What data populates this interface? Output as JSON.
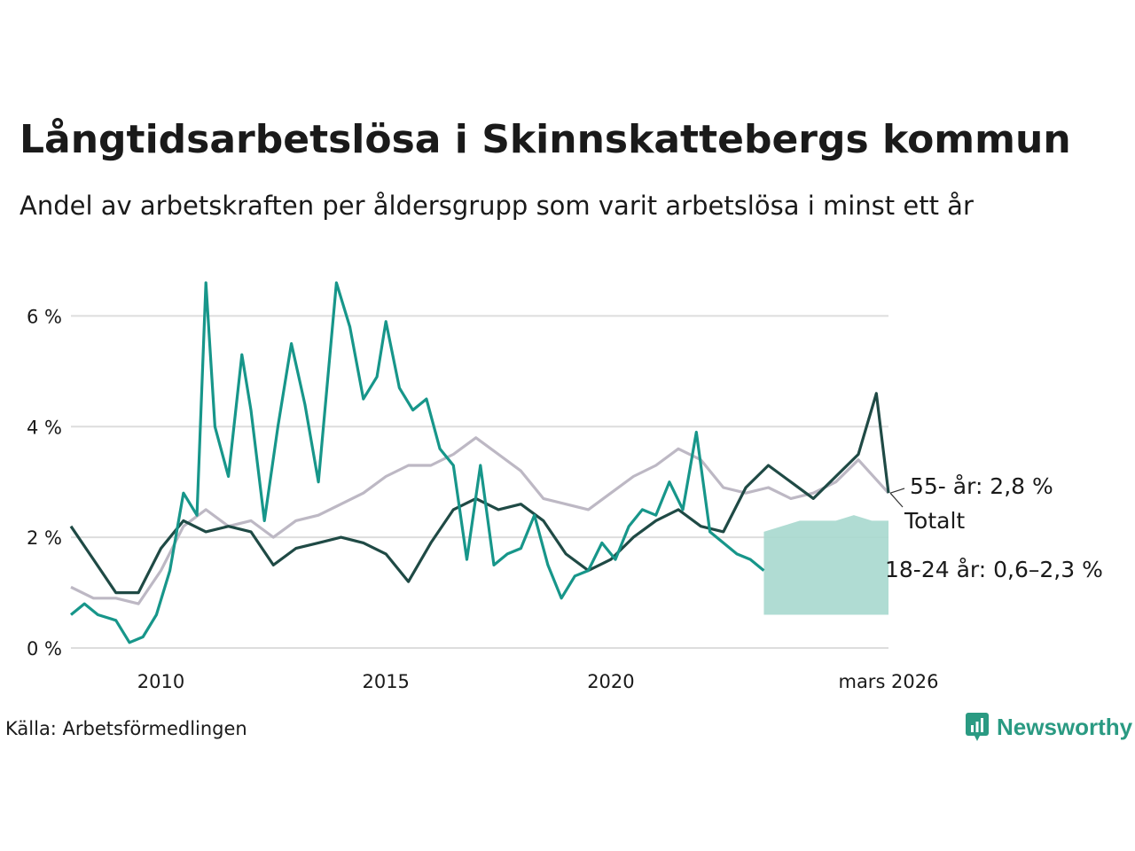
{
  "title": "Långtidsarbetslösa i Skinnskattebergs kommun",
  "subtitle": "Andel av arbetskraften per åldersgrupp som varit arbetslösa i minst ett år",
  "source": "Källa: Arbetsförmedlingen",
  "logo_text": "Newsworthy",
  "colors": {
    "total": "#1f4a45",
    "youth": "#17968a",
    "senior": "#bdb8c4",
    "band": "#a7d8ce",
    "grid": "#dddddd"
  },
  "chart_data": {
    "type": "line",
    "title": "Långtidsarbetslösa i Skinnskattebergs kommun",
    "xlabel": "",
    "ylabel": "",
    "ylim": [
      0,
      7
    ],
    "xlim": [
      2008.0,
      2026.17
    ],
    "y_ticks": [
      0,
      2,
      4,
      6
    ],
    "y_tick_labels": [
      "0 %",
      "2 %",
      "4 %",
      "6 %"
    ],
    "x_ticks": [
      2010,
      2015,
      2020,
      2026.17
    ],
    "x_tick_labels": [
      "2010",
      "2015",
      "2020",
      "mars 2026"
    ],
    "series": [
      {
        "name": "55- år",
        "label": "55- år: 2,8 %",
        "color": "#bdb8c4",
        "x": [
          2008.0,
          2008.5,
          2009.0,
          2009.5,
          2010.0,
          2010.5,
          2011.0,
          2011.5,
          2012.0,
          2012.5,
          2013.0,
          2013.5,
          2014.0,
          2014.5,
          2015.0,
          2015.5,
          2016.0,
          2016.5,
          2017.0,
          2017.5,
          2018.0,
          2018.5,
          2019.0,
          2019.5,
          2020.0,
          2020.5,
          2021.0,
          2021.5,
          2022.0,
          2022.5,
          2023.0,
          2023.5,
          2024.0,
          2024.5,
          2025.0,
          2025.5,
          2026.17
        ],
        "y": [
          1.1,
          0.9,
          0.9,
          0.8,
          1.4,
          2.2,
          2.5,
          2.2,
          2.3,
          2.0,
          2.3,
          2.4,
          2.6,
          2.8,
          3.1,
          3.3,
          3.3,
          3.5,
          3.8,
          3.5,
          3.2,
          2.7,
          2.6,
          2.5,
          2.8,
          3.1,
          3.3,
          3.6,
          3.4,
          2.9,
          2.8,
          2.9,
          2.7,
          2.8,
          3.0,
          3.4,
          2.8
        ]
      },
      {
        "name": "Totalt",
        "label": "Totalt",
        "color": "#1f4a45",
        "x": [
          2008.0,
          2008.5,
          2009.0,
          2009.5,
          2010.0,
          2010.5,
          2011.0,
          2011.5,
          2012.0,
          2012.5,
          2013.0,
          2013.5,
          2014.0,
          2014.5,
          2015.0,
          2015.5,
          2016.0,
          2016.5,
          2017.0,
          2017.5,
          2018.0,
          2018.5,
          2019.0,
          2019.5,
          2020.0,
          2020.5,
          2021.0,
          2021.5,
          2022.0,
          2022.5,
          2023.0,
          2023.5,
          2024.0,
          2024.5,
          2025.0,
          2025.5,
          2025.9,
          2026.17
        ],
        "y": [
          2.2,
          1.6,
          1.0,
          1.0,
          1.8,
          2.3,
          2.1,
          2.2,
          2.1,
          1.5,
          1.8,
          1.9,
          2.0,
          1.9,
          1.7,
          1.2,
          1.9,
          2.5,
          2.7,
          2.5,
          2.6,
          2.3,
          1.7,
          1.4,
          1.6,
          2.0,
          2.3,
          2.5,
          2.2,
          2.1,
          2.9,
          3.3,
          3.0,
          2.7,
          3.1,
          3.5,
          4.6,
          2.8
        ]
      },
      {
        "name": "18-24 år",
        "label": "18-24 år: 0,6–2,3 %",
        "color": "#17968a",
        "x": [
          2008.0,
          2008.3,
          2008.6,
          2009.0,
          2009.3,
          2009.6,
          2009.9,
          2010.2,
          2010.5,
          2010.8,
          2011.0,
          2011.2,
          2011.5,
          2011.8,
          2012.0,
          2012.3,
          2012.6,
          2012.9,
          2013.2,
          2013.5,
          2013.9,
          2014.2,
          2014.5,
          2014.8,
          2015.0,
          2015.3,
          2015.6,
          2015.9,
          2016.2,
          2016.5,
          2016.8,
          2017.1,
          2017.4,
          2017.7,
          2018.0,
          2018.3,
          2018.6,
          2018.9,
          2019.2,
          2019.5,
          2019.8,
          2020.1,
          2020.4,
          2020.7,
          2021.0,
          2021.3,
          2021.6,
          2021.9,
          2022.2,
          2022.5,
          2022.8,
          2023.1,
          2023.4
        ],
        "y": [
          0.6,
          0.8,
          0.6,
          0.5,
          0.1,
          0.2,
          0.6,
          1.4,
          2.8,
          2.4,
          6.6,
          4.0,
          3.1,
          5.3,
          4.3,
          2.3,
          4.0,
          5.5,
          4.4,
          3.0,
          6.6,
          5.8,
          4.5,
          4.9,
          5.9,
          4.7,
          4.3,
          4.5,
          3.6,
          3.3,
          1.6,
          3.3,
          1.5,
          1.7,
          1.8,
          2.4,
          1.5,
          0.9,
          1.3,
          1.4,
          1.9,
          1.6,
          2.2,
          2.5,
          2.4,
          3.0,
          2.5,
          3.9,
          2.1,
          1.9,
          1.7,
          1.6,
          1.4
        ]
      }
    ],
    "band": {
      "name": "18-24 år intervall",
      "x": [
        2023.4,
        2023.8,
        2024.2,
        2024.6,
        2025.0,
        2025.4,
        2025.8,
        2026.17
      ],
      "low": [
        0.6,
        0.6,
        0.6,
        0.6,
        0.6,
        0.6,
        0.6,
        0.6
      ],
      "high": [
        2.1,
        2.2,
        2.3,
        2.3,
        2.3,
        2.4,
        2.3,
        2.3
      ]
    }
  }
}
